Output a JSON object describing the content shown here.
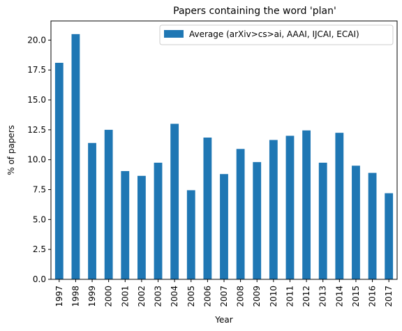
{
  "chart_data": {
    "type": "bar",
    "title": "Papers containing the word 'plan'",
    "xlabel": "Year",
    "ylabel": "% of papers",
    "categories": [
      "1997",
      "1998",
      "1999",
      "2000",
      "2001",
      "2002",
      "2003",
      "2004",
      "2005",
      "2006",
      "2007",
      "2008",
      "2009",
      "2010",
      "2011",
      "2012",
      "2013",
      "2014",
      "2015",
      "2016",
      "2017"
    ],
    "series": [
      {
        "name": "Average (arXiv>cs>ai, AAAI, IJCAI, ECAI)",
        "color": "#1f77b4",
        "values": [
          18.1,
          20.5,
          11.4,
          12.5,
          9.05,
          8.65,
          9.75,
          13.0,
          7.45,
          11.85,
          8.8,
          10.9,
          9.8,
          11.65,
          12.0,
          12.45,
          9.75,
          12.25,
          9.5,
          8.9,
          7.2
        ]
      }
    ],
    "ylim": [
      0,
      21.6
    ],
    "yticks": [
      0.0,
      2.5,
      5.0,
      7.5,
      10.0,
      12.5,
      15.0,
      17.5,
      20.0
    ],
    "ytick_labels": [
      "0.0",
      "2.5",
      "5.0",
      "7.5",
      "10.0",
      "12.5",
      "15.0",
      "17.5",
      "20.0"
    ],
    "grid": false,
    "legend_position": "top-right"
  }
}
